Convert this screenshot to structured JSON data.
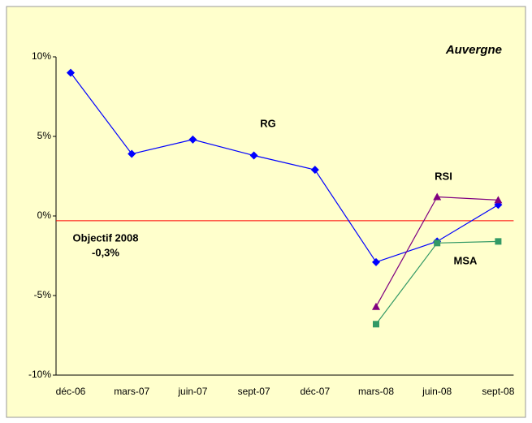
{
  "chart_data": {
    "type": "line",
    "title": "Auvergne",
    "categories": [
      "déc-06",
      "mars-07",
      "juin-07",
      "sept-07",
      "déc-07",
      "mars-08",
      "juin-08",
      "sept-08"
    ],
    "series": [
      {
        "name": "RG",
        "color": "#0000ff",
        "marker": "diamond",
        "values": [
          9.0,
          3.9,
          4.8,
          3.8,
          2.9,
          -2.9,
          -1.6,
          0.7
        ]
      },
      {
        "name": "RSI",
        "color": "#800080",
        "marker": "triangle",
        "values": [
          null,
          null,
          null,
          null,
          null,
          -5.7,
          1.2,
          1.0
        ]
      },
      {
        "name": "MSA",
        "color": "#339966",
        "marker": "square",
        "values": [
          null,
          null,
          null,
          null,
          null,
          -6.8,
          -1.7,
          -1.6
        ]
      }
    ],
    "objective": {
      "value": -0.3,
      "color": "#ff0000",
      "label": [
        "Objectif 2008",
        "-0,3%"
      ]
    },
    "ylim": [
      -10,
      10
    ],
    "yticks": [
      {
        "value": -10,
        "label": "-10%"
      },
      {
        "value": -5,
        "label": "-5%"
      },
      {
        "value": 0,
        "label": "0%"
      },
      {
        "value": 5,
        "label": "5%"
      },
      {
        "value": 10,
        "label": "10%"
      }
    ],
    "grid": false,
    "background": "#ffffcc"
  }
}
